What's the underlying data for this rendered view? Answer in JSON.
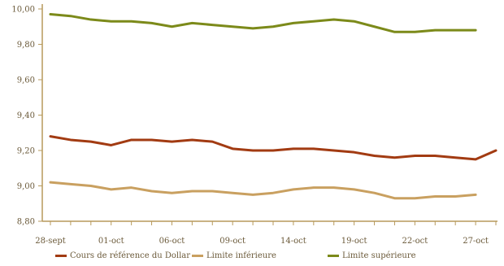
{
  "chart_data": {
    "type": "line",
    "title": "",
    "xlabel": "",
    "ylabel": "",
    "ylim": [
      8.8,
      10.0
    ],
    "yticks": [
      "10,00",
      "9,80",
      "9,60",
      "9,40",
      "9,20",
      "9,00",
      "8,80"
    ],
    "ytick_values": [
      10.0,
      9.8,
      9.6,
      9.4,
      9.2,
      9.0,
      8.8
    ],
    "xticks": [
      "28-sept",
      "01-oct",
      "06-oct",
      "09-oct",
      "14-oct",
      "19-oct",
      "22-oct",
      "27-oct"
    ],
    "xtick_index": [
      0,
      3,
      6,
      9,
      12,
      15,
      18,
      21
    ],
    "n_points": 23,
    "grid": false,
    "legend_position": "bottom",
    "series": [
      {
        "name": "Cours de référence du Dollar",
        "color": "#a23b12",
        "values": [
          9.28,
          9.26,
          9.25,
          9.23,
          9.26,
          9.26,
          9.25,
          9.26,
          9.25,
          9.21,
          9.2,
          9.2,
          9.21,
          9.21,
          9.2,
          9.19,
          9.17,
          9.16,
          9.17,
          9.17,
          9.16,
          9.15,
          9.2
        ]
      },
      {
        "name": "Limite inférieure",
        "color": "#c9a060",
        "values": [
          9.02,
          9.01,
          9.0,
          8.98,
          8.99,
          8.97,
          8.96,
          8.97,
          8.97,
          8.96,
          8.95,
          8.96,
          8.98,
          8.99,
          8.99,
          8.98,
          8.96,
          8.93,
          8.93,
          8.94,
          8.94,
          8.95,
          null
        ]
      },
      {
        "name": "Limite supérieure",
        "color": "#7c8a1a",
        "values": [
          9.97,
          9.96,
          9.94,
          9.93,
          9.93,
          9.92,
          9.9,
          9.92,
          9.91,
          9.9,
          9.89,
          9.9,
          9.92,
          9.93,
          9.94,
          9.93,
          9.9,
          9.87,
          9.87,
          9.88,
          9.88,
          9.88,
          null
        ]
      }
    ]
  }
}
